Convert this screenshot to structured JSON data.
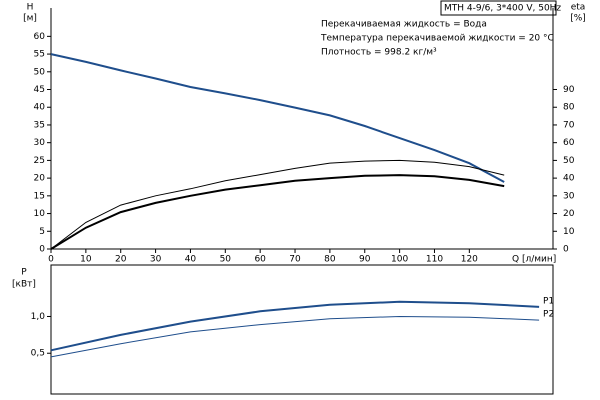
{
  "chart_data": [
    {
      "type": "line",
      "title": "MTH 4-9/6, 3*400 V, 50Hz",
      "annotations": [
        "Перекачиваемая жидкость = Вода",
        "Температура перекачиваемой жидкости = 20 °C",
        "Плотность = 998.2 кг/м³"
      ],
      "ylabel": "H",
      "yunit": "[м]",
      "y2label": "eta",
      "y2unit": "[%]",
      "xlabel": "Q [л/мин]",
      "x": [
        0,
        10,
        20,
        30,
        40,
        50,
        60,
        70,
        80,
        90,
        100,
        110,
        120,
        130
      ],
      "xlim": [
        0,
        144
      ],
      "xticks": [
        0,
        10,
        20,
        30,
        40,
        50,
        60,
        70,
        80,
        90,
        100,
        110,
        120
      ],
      "ylim": [
        0,
        68
      ],
      "yticks": [
        0,
        5,
        10,
        15,
        20,
        25,
        30,
        35,
        40,
        45,
        50,
        55,
        60
      ],
      "y2lim": [
        0,
        136
      ],
      "y2ticks": [
        0,
        10,
        20,
        30,
        40,
        50,
        60,
        70,
        80,
        90
      ],
      "series": [
        {
          "color": "#1f4e8c",
          "width": 2,
          "values": [
            55,
            52.8,
            50.4,
            48.1,
            45.7,
            43.9,
            42,
            39.9,
            37.7,
            34.7,
            31.3,
            27.9,
            24.2,
            18.9
          ]
        },
        {
          "color": "#000000",
          "width": 1,
          "axis": "y2",
          "values": [
            0,
            15,
            24.8,
            30,
            34,
            38.5,
            42,
            45.5,
            48.5,
            49.6,
            50,
            49,
            46.5,
            41.7
          ]
        },
        {
          "color": "#000000",
          "width": 2,
          "axis": "y2",
          "values": [
            0,
            12,
            20.8,
            26,
            30,
            33.5,
            36,
            38.5,
            40,
            41.3,
            41.7,
            41,
            39,
            35.5
          ]
        }
      ]
    },
    {
      "type": "line",
      "ylabel": "P",
      "yunit": "[кВт]",
      "x": [
        0,
        20,
        40,
        60,
        80,
        100,
        120,
        140
      ],
      "xlim": [
        0,
        144
      ],
      "ylim": [
        0,
        1.7
      ],
      "yticks": [
        {
          "value": 0.5,
          "label": "0,5"
        },
        {
          "value": 1,
          "label": "1,0"
        }
      ],
      "series": [
        {
          "name": "P1",
          "color": "#1f4e8c",
          "width": 2,
          "values": [
            0.54,
            0.75,
            0.93,
            1.07,
            1.16,
            1.2,
            1.18,
            1.13
          ]
        },
        {
          "name": "P2",
          "color": "#1f4e8c",
          "width": 1,
          "values": [
            0.45,
            0.63,
            0.79,
            0.89,
            0.97,
            1.0,
            0.99,
            0.95
          ]
        }
      ]
    }
  ]
}
